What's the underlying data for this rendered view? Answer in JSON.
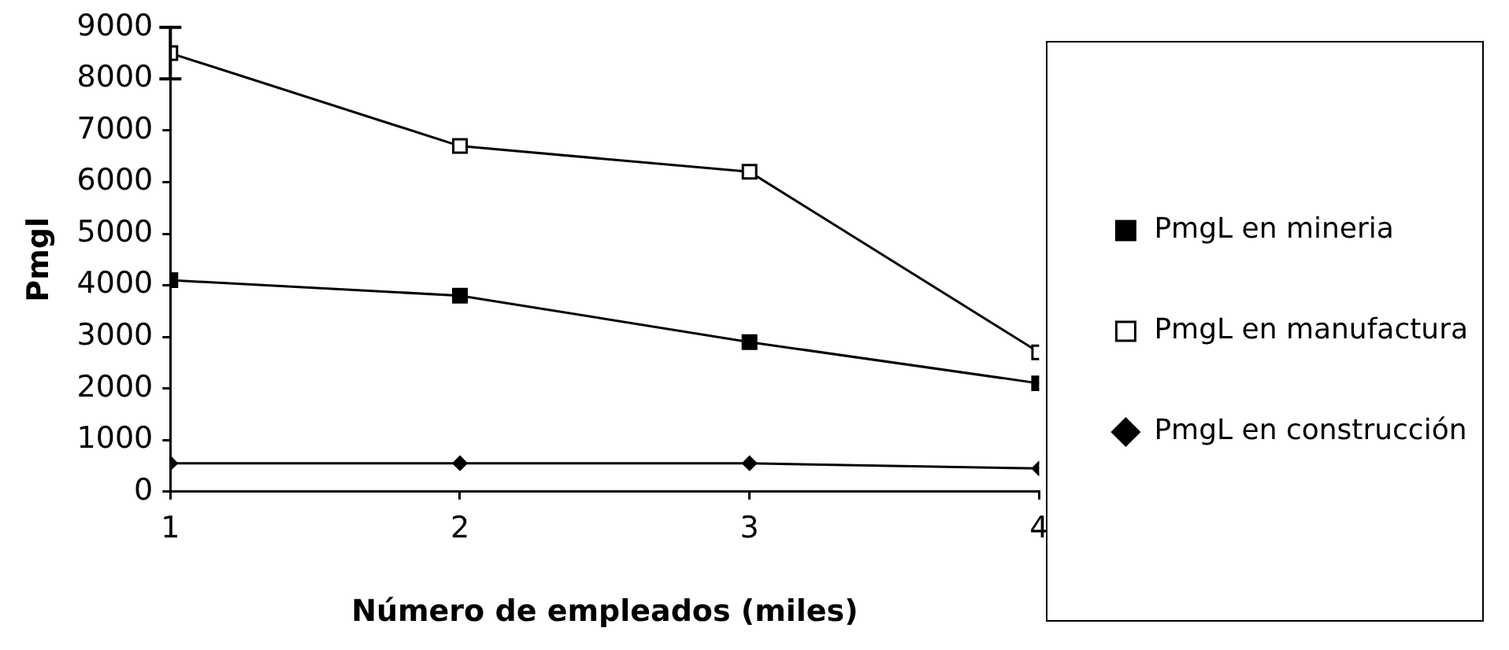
{
  "chart_data": {
    "type": "line",
    "xlabel": "Número de empleados (miles)",
    "ylabel": "Pmgl",
    "x": [
      1,
      2,
      3,
      4
    ],
    "xlim": [
      1,
      4
    ],
    "xticks": [
      1,
      2,
      3,
      4
    ],
    "ylim": [
      0,
      9000
    ],
    "yticks": [
      0,
      1000,
      2000,
      3000,
      4000,
      5000,
      6000,
      7000,
      8000,
      9000
    ],
    "grid": false,
    "legend": "right",
    "line_style": "solid",
    "series": [
      {
        "name": "PmgL en mineria",
        "color": "#000000",
        "marker": "square",
        "values": [
          4100,
          3800,
          2900,
          2100
        ]
      },
      {
        "name": "PmgL en manufactura",
        "color": "#000000",
        "marker": "square",
        "values": [
          8500,
          6700,
          6200,
          2700
        ],
        "errors": [
          500,
          null,
          null,
          null
        ]
      },
      {
        "name": "PmgL en construcción",
        "color": "#000000",
        "marker": "diamond",
        "values": [
          550,
          550,
          550,
          450
        ]
      }
    ]
  }
}
